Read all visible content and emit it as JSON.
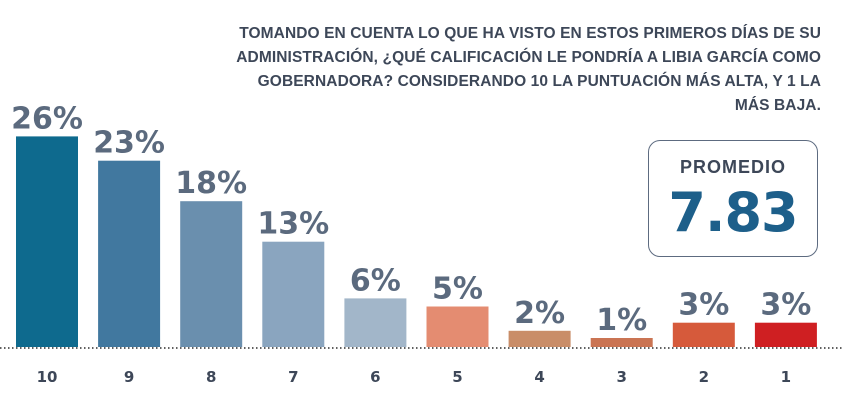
{
  "chart_data": {
    "type": "bar",
    "title": "TOMANDO EN CUENTA LO QUE HA VISTO EN ESTOS PRIMEROS DÍAS DE SU ADMINISTRACIÓN,  ¿QUÉ CALIFICACIÓN LE PONDRÍA A LIBIA GARCÍA COMO GOBERNADORA?  CONSIDERANDO 10 LA PUNTUACIÓN MÁS ALTA, Y 1 LA MÁS BAJA.",
    "categories": [
      "10",
      "9",
      "8",
      "7",
      "6",
      "5",
      "4",
      "3",
      "2",
      "1"
    ],
    "values": [
      26,
      23,
      18,
      13,
      6,
      5,
      2,
      1,
      3,
      3
    ],
    "value_labels": [
      "26%",
      "23%",
      "18%",
      "13%",
      "6%",
      "5%",
      "2%",
      "1%",
      "3%",
      "3%"
    ],
    "colors": [
      "#0e6a8e",
      "#41789f",
      "#6a8fae",
      "#8aa5bf",
      "#a2b6c9",
      "#e48c71",
      "#c98d68",
      "#ca7453",
      "#d65a3b",
      "#cf1f22"
    ],
    "ylim": [
      0,
      30
    ],
    "xlabel": "",
    "ylabel": ""
  },
  "summary": {
    "label": "PROMEDIO",
    "value": "7.83"
  }
}
